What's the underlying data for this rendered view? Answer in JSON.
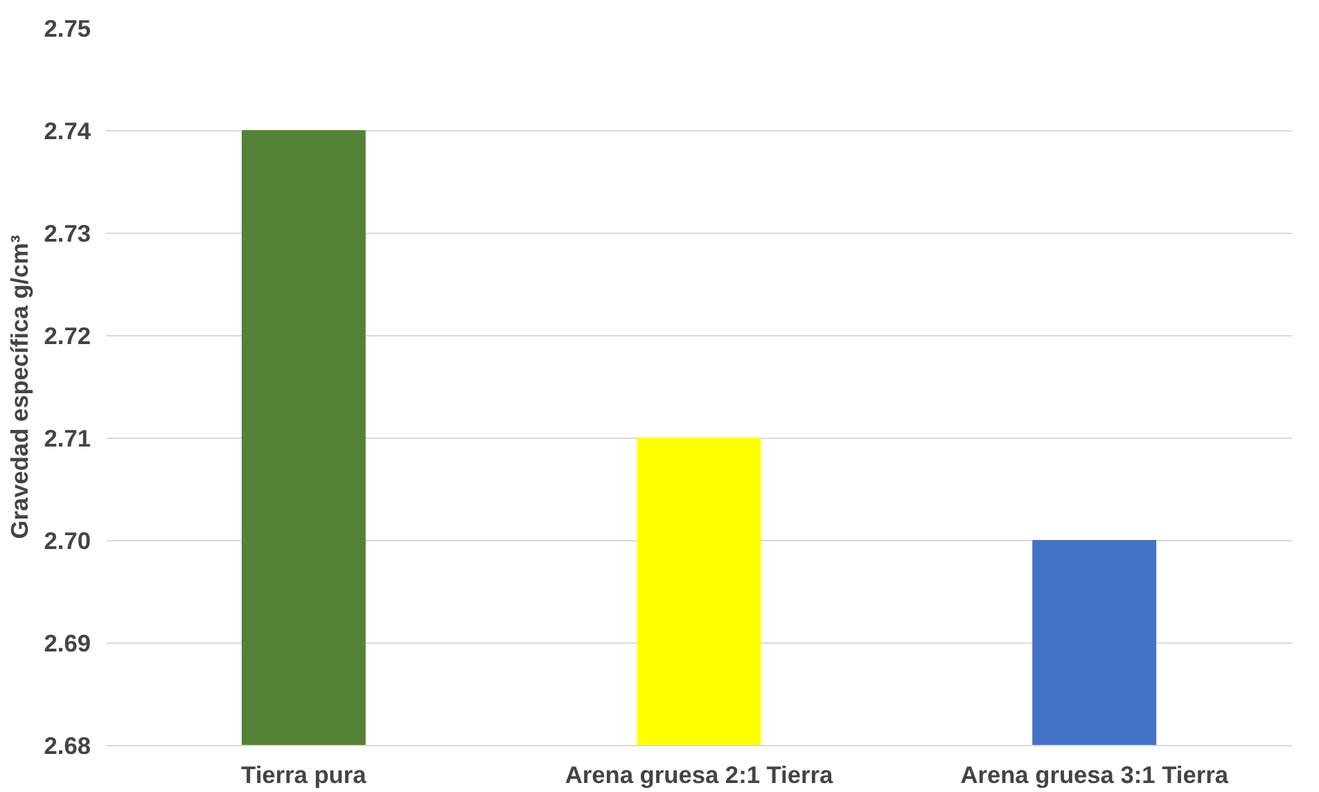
{
  "chart_data": {
    "type": "bar",
    "ylabel": "Gravedad específica g/cm³",
    "categories": [
      "Tierra pura",
      "Arena gruesa 2:1 Tierra",
      "Arena gruesa 3:1 Tierra"
    ],
    "values": [
      2.74,
      2.71,
      2.7
    ],
    "colors": [
      "#538135",
      "#ffff00",
      "#4472c4"
    ],
    "ylim": [
      2.68,
      2.75
    ],
    "yticks": [
      2.68,
      2.69,
      {
        "value": 2.7,
        "label": "2.70"
      },
      2.71,
      2.72,
      2.73,
      2.74,
      2.75
    ],
    "grid": "y"
  }
}
